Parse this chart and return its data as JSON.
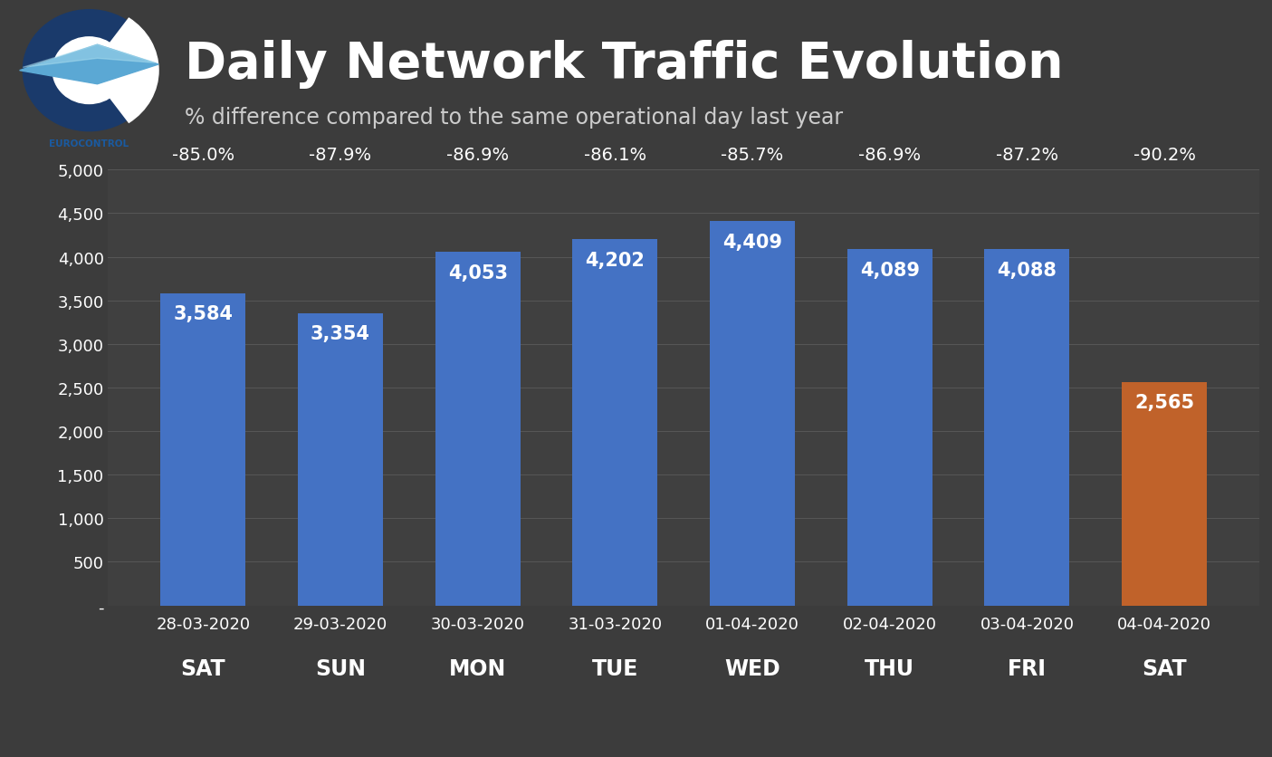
{
  "categories": [
    "28-03-2020",
    "29-03-2020",
    "30-03-2020",
    "31-03-2020",
    "01-04-2020",
    "02-04-2020",
    "03-04-2020",
    "04-04-2020"
  ],
  "days": [
    "SAT",
    "SUN",
    "MON",
    "TUE",
    "WED",
    "THU",
    "FRI",
    "SAT"
  ],
  "values": [
    3584,
    3354,
    4053,
    4202,
    4409,
    4089,
    4088,
    2565
  ],
  "pct_labels": [
    "-85.0%",
    "-87.9%",
    "-86.9%",
    "-86.1%",
    "-85.7%",
    "-86.9%",
    "-87.2%",
    "-90.2%"
  ],
  "bar_colors": [
    "#4472C4",
    "#4472C4",
    "#4472C4",
    "#4472C4",
    "#4472C4",
    "#4472C4",
    "#4472C4",
    "#C0622A"
  ],
  "background_color": "#3C3C3C",
  "plot_bg_color": "#404040",
  "title": "Daily Network Traffic Evolution",
  "subtitle": "% difference compared to the same operational day last year",
  "title_fontsize": 40,
  "subtitle_fontsize": 17,
  "bar_val_fontsize": 15,
  "pct_fontsize": 14,
  "tick_fontsize": 13,
  "day_fontsize": 17,
  "yticks": [
    0,
    500,
    1000,
    1500,
    2000,
    2500,
    3000,
    3500,
    4000,
    4500,
    5000
  ],
  "ytick_labels": [
    "-",
    "500",
    "1,000",
    "1,500",
    "2,000",
    "2,500",
    "3,000",
    "3,500",
    "4,000",
    "4,500",
    "5,000"
  ]
}
